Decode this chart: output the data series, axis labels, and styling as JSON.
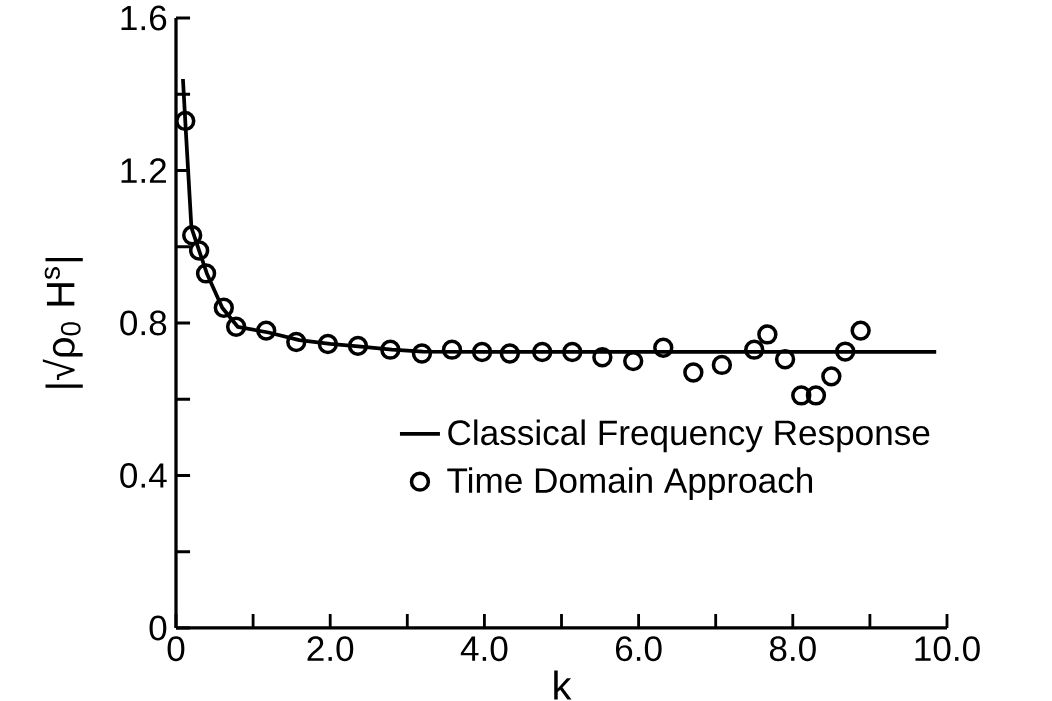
{
  "chart_data": {
    "type": "line",
    "xlabel": "k",
    "ylabel": "|√ρ$_{0}$ H$^{s}$|",
    "xlim": [
      0,
      10
    ],
    "ylim": [
      0,
      1.6
    ],
    "xticks": [
      0,
      {
        "value": 1,
        "label": null
      },
      {
        "value": 2,
        "label": "2.0"
      },
      {
        "value": 3,
        "label": null
      },
      {
        "value": 4,
        "label": "4.0"
      },
      {
        "value": 5,
        "label": null
      },
      {
        "value": 6,
        "label": "6.0"
      },
      {
        "value": 7,
        "label": null
      },
      {
        "value": 8,
        "label": "8.0"
      },
      {
        "value": 9,
        "label": null
      },
      {
        "value": 10,
        "label": "10.0"
      }
    ],
    "yticks": [
      0,
      {
        "value": 0.2,
        "label": null
      },
      0.4,
      {
        "value": 0.6,
        "label": null
      },
      0.8,
      {
        "value": 1.0,
        "label": null
      },
      1.2,
      {
        "value": 1.4,
        "label": null
      },
      1.6
    ],
    "legend": "right",
    "grid": false,
    "series": [
      {
        "name": "Classical Frequency Response",
        "color": "#000000",
        "marker": "none",
        "line_style": "solid",
        "x": [
          0.09,
          0.12,
          0.2,
          0.3,
          0.4,
          0.6,
          0.8,
          1.2,
          1.6,
          2.0,
          2.4,
          2.8,
          3.2,
          4.0,
          9.86
        ],
        "values": [
          1.44,
          1.33,
          1.05,
          0.99,
          0.93,
          0.84,
          0.79,
          0.775,
          0.755,
          0.745,
          0.738,
          0.73,
          0.725,
          0.724,
          0.724
        ]
      },
      {
        "name": "Time Domain Approach",
        "type": "scatter",
        "color": "#000000",
        "marker": "circle",
        "x": [
          0.12,
          0.21,
          0.3,
          0.39,
          0.62,
          0.78,
          1.17,
          1.56,
          1.97,
          2.36,
          2.78,
          3.19,
          3.58,
          3.97,
          4.33,
          4.75,
          5.14,
          5.53,
          5.93,
          6.32,
          6.71,
          7.08,
          7.5,
          7.67,
          7.9,
          8.11,
          8.3,
          8.5,
          8.68,
          8.88
        ],
        "values": [
          1.33,
          1.03,
          0.99,
          0.93,
          0.84,
          0.79,
          0.78,
          0.75,
          0.745,
          0.74,
          0.73,
          0.72,
          0.73,
          0.724,
          0.72,
          0.724,
          0.724,
          0.71,
          0.7,
          0.735,
          0.67,
          0.69,
          0.73,
          0.77,
          0.705,
          0.61,
          0.61,
          0.66,
          0.725,
          0.78
        ]
      }
    ]
  }
}
